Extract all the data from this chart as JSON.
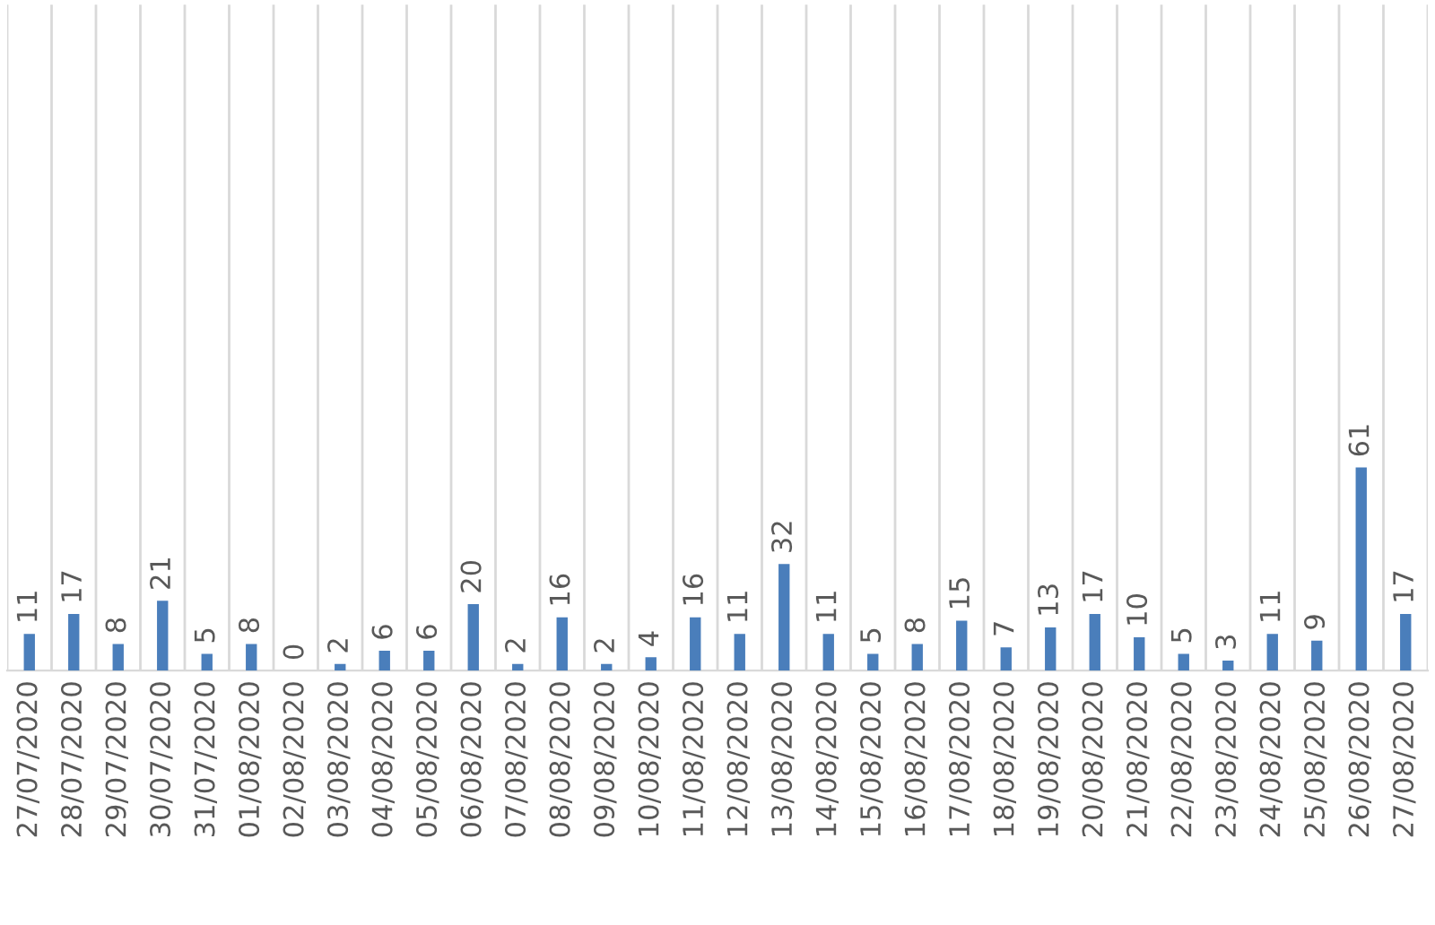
{
  "chart_data": {
    "type": "bar",
    "categories": [
      "27/07/2020",
      "28/07/2020",
      "29/07/2020",
      "30/07/2020",
      "31/07/2020",
      "01/08/2020",
      "02/08/2020",
      "03/08/2020",
      "04/08/2020",
      "05/08/2020",
      "06/08/2020",
      "07/08/2020",
      "08/08/2020",
      "09/08/2020",
      "10/08/2020",
      "11/08/2020",
      "12/08/2020",
      "13/08/2020",
      "14/08/2020",
      "15/08/2020",
      "16/08/2020",
      "17/08/2020",
      "18/08/2020",
      "19/08/2020",
      "20/08/2020",
      "21/08/2020",
      "22/08/2020",
      "23/08/2020",
      "24/08/2020",
      "25/08/2020",
      "26/08/2020",
      "27/08/2020"
    ],
    "values": [
      11,
      17,
      8,
      21,
      5,
      8,
      0,
      2,
      6,
      6,
      20,
      2,
      16,
      2,
      4,
      16,
      11,
      32,
      11,
      5,
      8,
      15,
      7,
      13,
      17,
      10,
      5,
      3,
      11,
      9,
      61,
      17
    ],
    "color": "#4a7ebb",
    "ylim": [
      0,
      200
    ],
    "tick_labels": "x",
    "data_labels": true,
    "grid": "x"
  }
}
